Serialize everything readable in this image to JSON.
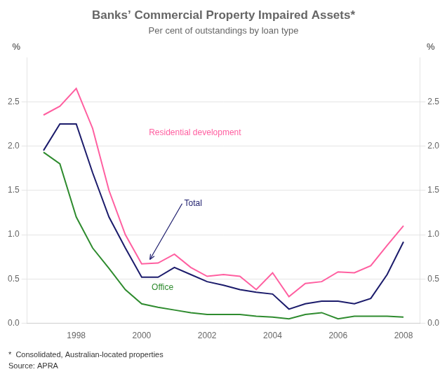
{
  "chart_data": {
    "type": "line",
    "title": "Banks’ Commercial Property Impaired Assets*",
    "subtitle": "Per cent of outstandings by loan type",
    "ylabel": "%",
    "y2label": "%",
    "footnote": "*  Consolidated, Australian-located properties",
    "source": "Source: APRA",
    "x": [
      1997,
      1997.5,
      1998,
      1998.5,
      1999,
      1999.5,
      2000,
      2000.5,
      2001,
      2001.5,
      2002,
      2002.5,
      2003,
      2003.5,
      2004,
      2004.5,
      2005,
      2005.5,
      2006,
      2006.5,
      2007,
      2007.5,
      2008
    ],
    "series": [
      {
        "name": "Total",
        "color": "#1b1b6b",
        "values": [
          1.95,
          2.25,
          2.25,
          1.7,
          1.2,
          0.85,
          0.52,
          0.52,
          0.63,
          0.55,
          0.47,
          0.43,
          0.38,
          0.35,
          0.33,
          0.16,
          0.22,
          0.25,
          0.25,
          0.22,
          0.28,
          0.55,
          0.92
        ]
      },
      {
        "name": "Residential development",
        "color": "#ff5fa0",
        "values": [
          2.35,
          2.45,
          2.65,
          2.2,
          1.5,
          1.0,
          0.67,
          0.68,
          0.78,
          0.63,
          0.53,
          0.55,
          0.53,
          0.38,
          0.57,
          0.3,
          0.45,
          0.47,
          0.58,
          0.57,
          0.65,
          0.88,
          1.1
        ]
      },
      {
        "name": "Office",
        "color": "#2e8b2e",
        "values": [
          1.93,
          1.8,
          1.2,
          0.85,
          0.62,
          0.38,
          0.22,
          0.18,
          0.15,
          0.12,
          0.1,
          0.1,
          0.1,
          0.08,
          0.07,
          0.05,
          0.1,
          0.12,
          0.05,
          0.08,
          0.08,
          0.08,
          0.07
        ]
      }
    ],
    "xlim": [
      1996.5,
      2008.5
    ],
    "xticks": [
      1998,
      2000,
      2002,
      2004,
      2006,
      2008
    ],
    "ylim": [
      0,
      3.0
    ],
    "yticks": [
      {
        "value": 0,
        "label": "0.0"
      },
      0.5,
      {
        "value": 1,
        "label": "1.0"
      },
      1.5,
      {
        "value": 2,
        "label": "2.0"
      },
      2.5
    ],
    "y2lim": [
      0,
      3.0
    ],
    "y2ticks": [
      {
        "value": 0,
        "label": "0.0"
      },
      0.5,
      {
        "value": 1,
        "label": "1.0"
      },
      1.5,
      {
        "value": 2,
        "label": "2.0"
      },
      2.5
    ],
    "grid": "y"
  }
}
